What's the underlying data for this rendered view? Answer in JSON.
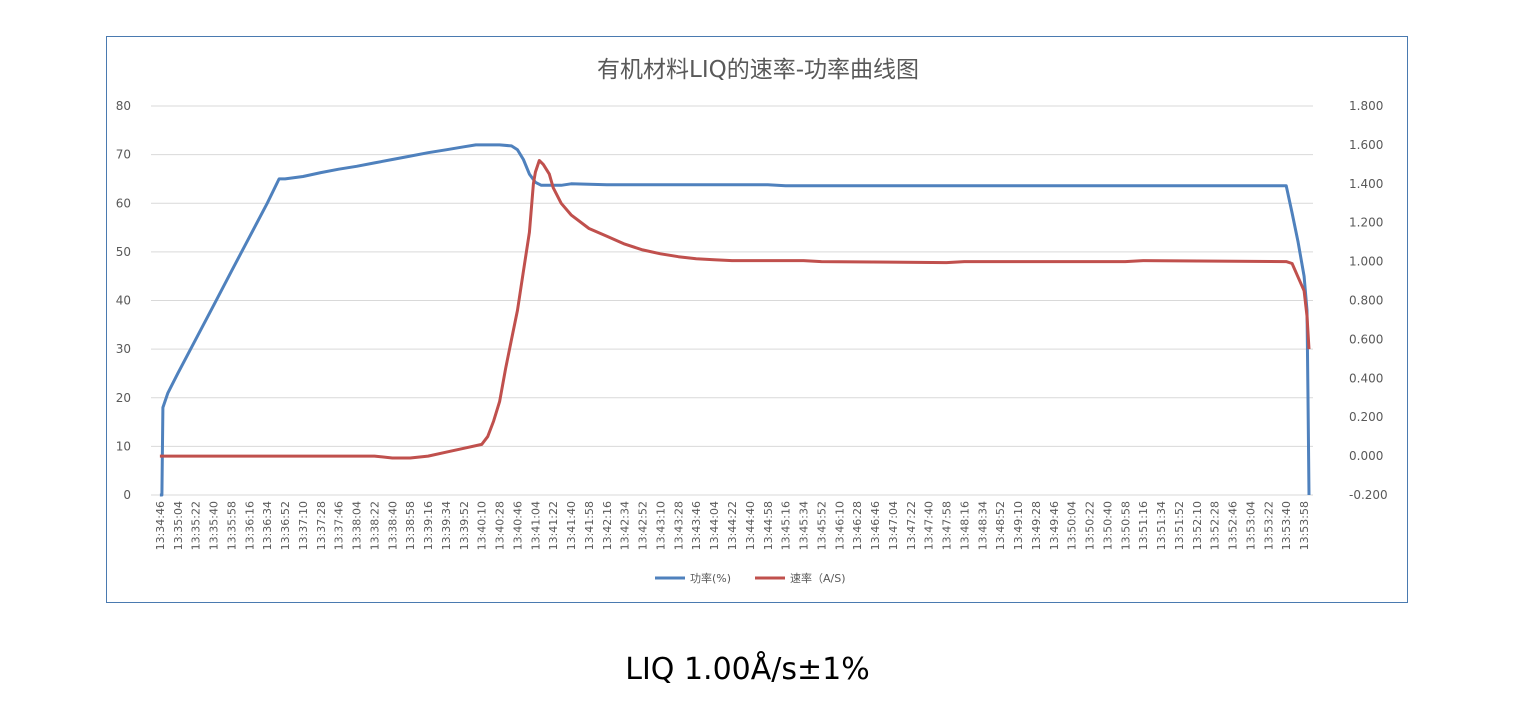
{
  "caption": "LIQ 1.00Å/s±1%",
  "chart_data": {
    "type": "line",
    "title": "有机材料LIQ的速率-功率曲线图",
    "xlabel": "",
    "ylabel": "",
    "grid": true,
    "legend_position": "bottom",
    "x_ticks": [
      "13:34:46",
      "13:35:04",
      "13:35:22",
      "13:35:40",
      "13:35:58",
      "13:36:16",
      "13:36:34",
      "13:36:52",
      "13:37:10",
      "13:37:28",
      "13:37:46",
      "13:38:04",
      "13:38:22",
      "13:38:40",
      "13:38:58",
      "13:39:16",
      "13:39:34",
      "13:39:52",
      "13:40:10",
      "13:40:28",
      "13:40:46",
      "13:41:04",
      "13:41:22",
      "13:41:40",
      "13:41:58",
      "13:42:16",
      "13:42:34",
      "13:42:52",
      "13:43:10",
      "13:43:28",
      "13:43:46",
      "13:44:04",
      "13:44:22",
      "13:44:40",
      "13:44:58",
      "13:45:16",
      "13:45:34",
      "13:45:52",
      "13:46:10",
      "13:46:28",
      "13:46:46",
      "13:47:04",
      "13:47:22",
      "13:47:40",
      "13:47:58",
      "13:48:16",
      "13:48:34",
      "13:48:52",
      "13:49:10",
      "13:49:28",
      "13:49:46",
      "13:50:04",
      "13:50:22",
      "13:50:40",
      "13:50:58",
      "13:51:16",
      "13:51:34",
      "13:51:52",
      "13:52:10",
      "13:52:28",
      "13:52:46",
      "13:53:04",
      "13:53:22",
      "13:53:40",
      "13:53:58"
    ],
    "y_left": {
      "ylim": [
        0,
        80
      ],
      "ticks": [
        "0",
        "10",
        "20",
        "30",
        "40",
        "50",
        "60",
        "70",
        "80"
      ]
    },
    "y_right": {
      "ylim": [
        -0.2,
        1.8
      ],
      "ticks": [
        "-0.200",
        "0.000",
        "0.200",
        "0.400",
        "0.600",
        "0.800",
        "1.000",
        "1.200",
        "1.400",
        "1.600",
        "1.800"
      ]
    },
    "series": [
      {
        "name": "功率(%)",
        "axis": "left",
        "color": "#4f81bd",
        "points": [
          [
            "13:34:46",
            0
          ],
          [
            "13:34:48",
            0
          ],
          [
            "13:34:49",
            18
          ],
          [
            "13:34:54",
            21
          ],
          [
            "13:35:04",
            25
          ],
          [
            "13:35:22",
            32
          ],
          [
            "13:35:40",
            39
          ],
          [
            "13:35:58",
            46
          ],
          [
            "13:36:16",
            53
          ],
          [
            "13:36:34",
            60
          ],
          [
            "13:36:46",
            65
          ],
          [
            "13:36:52",
            65
          ],
          [
            "13:37:10",
            65.5
          ],
          [
            "13:37:28",
            66.3
          ],
          [
            "13:37:46",
            67
          ],
          [
            "13:38:04",
            67.6
          ],
          [
            "13:38:22",
            68.3
          ],
          [
            "13:38:40",
            69
          ],
          [
            "13:38:58",
            69.7
          ],
          [
            "13:39:16",
            70.4
          ],
          [
            "13:39:34",
            71
          ],
          [
            "13:39:52",
            71.6
          ],
          [
            "13:40:04",
            72
          ],
          [
            "13:40:28",
            72
          ],
          [
            "13:40:40",
            71.8
          ],
          [
            "13:40:46",
            71
          ],
          [
            "13:40:52",
            69
          ],
          [
            "13:40:58",
            66
          ],
          [
            "13:41:04",
            64.3
          ],
          [
            "13:41:10",
            63.7
          ],
          [
            "13:41:30",
            63.7
          ],
          [
            "13:41:40",
            64
          ],
          [
            "13:41:58",
            63.9
          ],
          [
            "13:42:16",
            63.8
          ],
          [
            "13:44:58",
            63.8
          ],
          [
            "13:45:16",
            63.6
          ],
          [
            "13:53:40",
            63.6
          ],
          [
            "13:53:46",
            58
          ],
          [
            "13:53:52",
            52
          ],
          [
            "13:53:58",
            45
          ],
          [
            "13:54:01",
            38
          ],
          [
            "13:54:02",
            20
          ],
          [
            "13:54:03",
            0
          ]
        ]
      },
      {
        "name": "速率（A/S)",
        "axis": "right",
        "color": "#c0504d",
        "points": [
          [
            "13:34:46",
            0
          ],
          [
            "13:38:22",
            0
          ],
          [
            "13:38:40",
            -0.01
          ],
          [
            "13:38:58",
            -0.01
          ],
          [
            "13:39:16",
            0
          ],
          [
            "13:39:34",
            0.02
          ],
          [
            "13:39:52",
            0.04
          ],
          [
            "13:40:10",
            0.06
          ],
          [
            "13:40:16",
            0.1
          ],
          [
            "13:40:22",
            0.18
          ],
          [
            "13:40:28",
            0.28
          ],
          [
            "13:40:34",
            0.45
          ],
          [
            "13:40:40",
            0.6
          ],
          [
            "13:40:46",
            0.75
          ],
          [
            "13:40:52",
            0.95
          ],
          [
            "13:40:58",
            1.15
          ],
          [
            "13:41:02",
            1.4
          ],
          [
            "13:41:04",
            1.46
          ],
          [
            "13:41:08",
            1.52
          ],
          [
            "13:41:12",
            1.5
          ],
          [
            "13:41:18",
            1.45
          ],
          [
            "13:41:22",
            1.38
          ],
          [
            "13:41:30",
            1.3
          ],
          [
            "13:41:40",
            1.24
          ],
          [
            "13:41:58",
            1.17
          ],
          [
            "13:42:16",
            1.13
          ],
          [
            "13:42:34",
            1.09
          ],
          [
            "13:42:52",
            1.06
          ],
          [
            "13:43:10",
            1.04
          ],
          [
            "13:43:28",
            1.025
          ],
          [
            "13:43:46",
            1.015
          ],
          [
            "13:44:04",
            1.01
          ],
          [
            "13:44:22",
            1.005
          ],
          [
            "13:45:34",
            1.005
          ],
          [
            "13:45:52",
            1.0
          ],
          [
            "13:47:58",
            0.995
          ],
          [
            "13:48:16",
            1.0
          ],
          [
            "13:50:58",
            1.0
          ],
          [
            "13:51:16",
            1.005
          ],
          [
            "13:53:40",
            1.0
          ],
          [
            "13:53:46",
            0.99
          ],
          [
            "13:53:52",
            0.92
          ],
          [
            "13:53:58",
            0.85
          ],
          [
            "13:54:01",
            0.72
          ],
          [
            "13:54:03",
            0.55
          ]
        ]
      }
    ]
  }
}
